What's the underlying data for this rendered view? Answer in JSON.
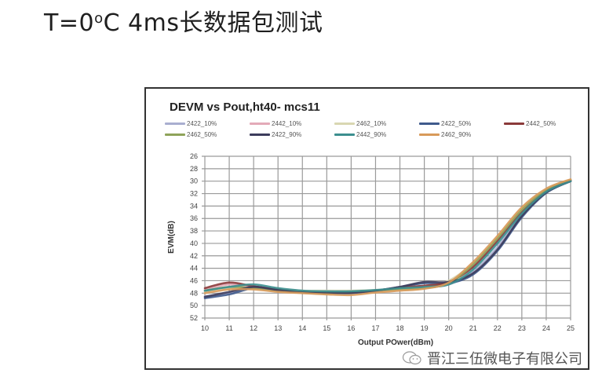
{
  "slide": {
    "title_prefix": "T=0",
    "title_degree": "o",
    "title_suffix": "C 4ms长数据包测试"
  },
  "watermark": {
    "icon": "wechat-icon",
    "text": "晋江三伍微电子有限公司"
  },
  "chart_data": {
    "type": "line",
    "title": "DEVM vs Pout,ht40- mcs11",
    "xlabel": "Output  POwer(dBm)",
    "ylabel": "EVM(dB)",
    "xlim": [
      10,
      25
    ],
    "ylim": [
      -52,
      -26
    ],
    "y_tick_labels": [
      "26",
      "28",
      "30",
      "32",
      "34",
      "36",
      "38",
      "40",
      "42",
      "44",
      "46",
      "48",
      "50",
      "52"
    ],
    "x_tick_labels": [
      "10",
      "11",
      "12",
      "13",
      "14",
      "15",
      "16",
      "17",
      "18",
      "19",
      "20",
      "21",
      "22",
      "23",
      "24",
      "25"
    ],
    "grid": true,
    "legend_position": "top",
    "x": [
      10,
      11,
      12,
      13,
      14,
      15,
      16,
      17,
      18,
      19,
      20,
      21,
      22,
      23,
      24,
      25
    ],
    "series": [
      {
        "name": "2422_10%",
        "color": "#a9aed0",
        "values": [
          -48.5,
          -48.0,
          -47.0,
          -47.6,
          -47.8,
          -48.0,
          -48.0,
          -47.6,
          -47.2,
          -46.8,
          -46.6,
          -44.6,
          -40.6,
          -35.4,
          -31.8,
          -30.0
        ]
      },
      {
        "name": "2442_10%",
        "color": "#e3aab8",
        "values": [
          -47.4,
          -46.6,
          -47.0,
          -47.4,
          -47.7,
          -47.8,
          -47.8,
          -47.6,
          -47.2,
          -46.9,
          -46.2,
          -43.6,
          -39.4,
          -34.8,
          -31.6,
          -29.9
        ]
      },
      {
        "name": "2462_10%",
        "color": "#d9d7b2",
        "values": [
          -47.8,
          -47.2,
          -47.2,
          -47.4,
          -47.6,
          -47.6,
          -47.6,
          -47.5,
          -47.2,
          -47.0,
          -46.0,
          -43.2,
          -39.0,
          -34.4,
          -31.3,
          -29.8
        ]
      },
      {
        "name": "2422_50%",
        "color": "#3f5a8c",
        "values": [
          -48.8,
          -48.2,
          -47.2,
          -47.6,
          -47.9,
          -48.0,
          -48.0,
          -47.6,
          -47.0,
          -46.4,
          -46.4,
          -45.0,
          -41.2,
          -35.8,
          -31.9,
          -30.0
        ]
      },
      {
        "name": "2442_50%",
        "color": "#8b3a3a",
        "values": [
          -47.2,
          -46.3,
          -46.9,
          -47.4,
          -47.8,
          -47.9,
          -47.9,
          -47.6,
          -47.1,
          -46.8,
          -46.2,
          -43.8,
          -39.6,
          -35.0,
          -31.6,
          -29.9
        ]
      },
      {
        "name": "2462_50%",
        "color": "#8fa35a",
        "values": [
          -47.6,
          -47.0,
          -47.2,
          -47.6,
          -47.8,
          -47.9,
          -47.8,
          -47.6,
          -47.4,
          -47.2,
          -46.4,
          -43.4,
          -39.2,
          -34.6,
          -31.4,
          -29.8
        ]
      },
      {
        "name": "2422_90%",
        "color": "#3c3c5c",
        "values": [
          -48.6,
          -47.8,
          -47.0,
          -47.5,
          -47.8,
          -47.9,
          -47.9,
          -47.6,
          -47.0,
          -46.2,
          -46.2,
          -44.8,
          -41.0,
          -35.6,
          -31.8,
          -30.0
        ]
      },
      {
        "name": "2442_90%",
        "color": "#3c8f8f",
        "values": [
          -47.6,
          -47.0,
          -46.6,
          -47.2,
          -47.6,
          -47.7,
          -47.7,
          -47.5,
          -47.2,
          -47.0,
          -46.6,
          -44.2,
          -40.0,
          -35.2,
          -31.7,
          -30.0
        ]
      },
      {
        "name": "2462_90%",
        "color": "#d89a5a",
        "values": [
          -48.0,
          -47.4,
          -47.4,
          -47.8,
          -48.0,
          -48.2,
          -48.3,
          -47.9,
          -47.6,
          -47.3,
          -46.3,
          -43.0,
          -38.8,
          -34.2,
          -31.2,
          -29.7
        ]
      }
    ]
  }
}
